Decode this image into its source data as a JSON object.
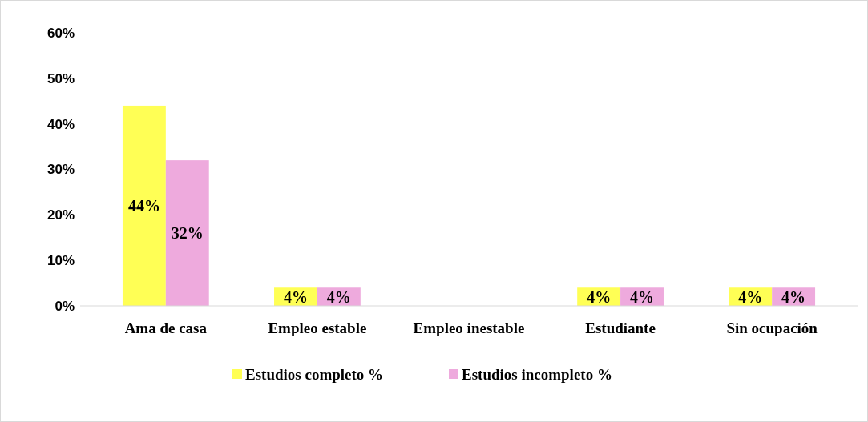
{
  "chart_data": {
    "type": "bar",
    "categories": [
      "Ama de casa",
      "Empleo estable",
      "Empleo inestable",
      "Estudiante",
      "Sin ocupación"
    ],
    "series": [
      {
        "name": "Estudios completo %",
        "color": "#ffff55",
        "values": [
          44,
          4,
          0,
          4,
          4
        ],
        "value_labels": [
          "44%",
          "4%",
          null,
          "4%",
          "4%"
        ]
      },
      {
        "name": "Estudios incompleto %",
        "color": "#eeaadd",
        "values": [
          32,
          4,
          0,
          4,
          4
        ],
        "value_labels": [
          "32%",
          "4%",
          null,
          "4%",
          "4%"
        ]
      }
    ],
    "ylim": [
      0,
      60
    ],
    "yticks": [
      {
        "value": 0,
        "label": "0%"
      },
      {
        "value": 10,
        "label": "10%"
      },
      {
        "value": 20,
        "label": "20%"
      },
      {
        "value": 30,
        "label": "30%"
      },
      {
        "value": 40,
        "label": "40%"
      },
      {
        "value": 50,
        "label": "50%"
      },
      {
        "value": 60,
        "label": "60%"
      }
    ],
    "grid": false,
    "legend": "bottom"
  }
}
